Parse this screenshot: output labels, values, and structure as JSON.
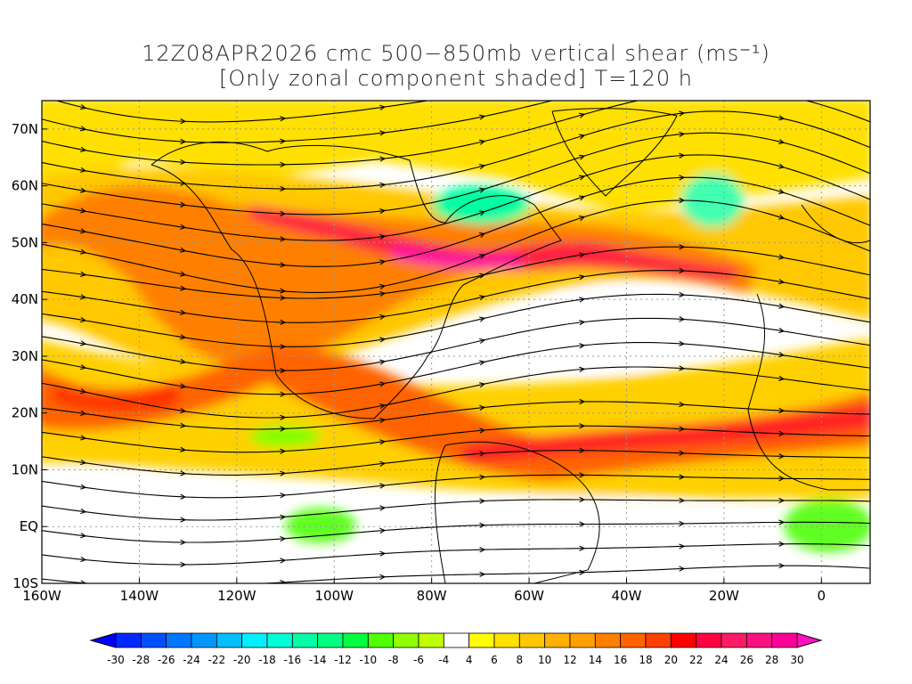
{
  "title": {
    "line1": "12Z08APR2026 cmc 500−850mb vertical shear (ms⁻¹)",
    "line2": "[Only zonal component shaded] T=120 h"
  },
  "map": {
    "lon_range": [
      -160,
      10
    ],
    "lat_range": [
      -10,
      75
    ],
    "lat_labels": [
      {
        "lat": 70,
        "label": "70N"
      },
      {
        "lat": 60,
        "label": "60N"
      },
      {
        "lat": 50,
        "label": "50N"
      },
      {
        "lat": 40,
        "label": "40N"
      },
      {
        "lat": 30,
        "label": "30N"
      },
      {
        "lat": 20,
        "label": "20N"
      },
      {
        "lat": 10,
        "label": "10N"
      },
      {
        "lat": 0,
        "label": "EQ"
      },
      {
        "lat": -10,
        "label": "10S"
      }
    ],
    "lon_labels": [
      {
        "lon": -160,
        "label": "160W"
      },
      {
        "lon": -140,
        "label": "140W"
      },
      {
        "lon": -120,
        "label": "120W"
      },
      {
        "lon": -100,
        "label": "100W"
      },
      {
        "lon": -80,
        "label": "80W"
      },
      {
        "lon": -60,
        "label": "60W"
      },
      {
        "lon": -40,
        "label": "40W"
      },
      {
        "lon": -20,
        "label": "20W"
      },
      {
        "lon": 0,
        "label": "0"
      }
    ]
  },
  "colorbar": {
    "labels": [
      "-30",
      "-28",
      "-26",
      "-24",
      "-22",
      "-20",
      "-18",
      "-16",
      "-14",
      "-12",
      "-10",
      "-8",
      "-6",
      "-4",
      "4",
      "6",
      "8",
      "10",
      "12",
      "14",
      "16",
      "18",
      "20",
      "22",
      "24",
      "26",
      "28",
      "30"
    ],
    "colors": [
      "#0028ff",
      "#0050ff",
      "#0078ff",
      "#0098ff",
      "#00c0ff",
      "#00f0ff",
      "#00ffd8",
      "#00ffa8",
      "#00ff80",
      "#00ff40",
      "#50ff00",
      "#90ff00",
      "#c0ff00",
      "#ffffff",
      "#ffff00",
      "#ffe000",
      "#ffc800",
      "#ffb000",
      "#ffa000",
      "#ff8000",
      "#ff6400",
      "#ff4000",
      "#ff0000",
      "#ff0040",
      "#ff1a66",
      "#ff1080",
      "#ff0098"
    ],
    "low_arrow_color": "#0000ff",
    "high_arrow_color": "#ff10c0"
  }
}
